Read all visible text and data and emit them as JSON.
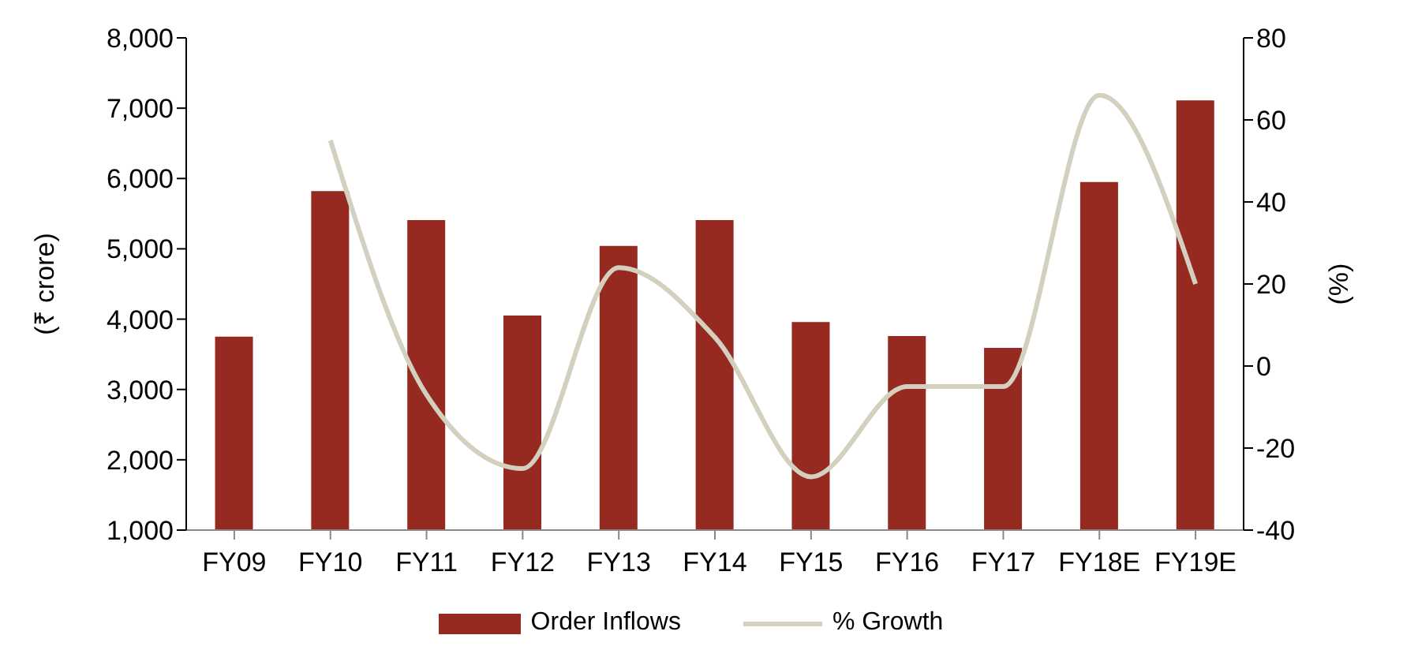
{
  "chart_data": {
    "type": "bar",
    "categories": [
      "FY09",
      "FY10",
      "FY11",
      "FY12",
      "FY13",
      "FY14",
      "FY15",
      "FY16",
      "FY17",
      "FY18E",
      "FY19E"
    ],
    "series": [
      {
        "name": "Order Inflows",
        "color": "#962920",
        "values": [
          3750,
          5820,
          5410,
          4050,
          5040,
          5410,
          3960,
          3760,
          3590,
          5950,
          7110
        ]
      },
      {
        "name": "% Growth",
        "type": "line",
        "axis": "y2",
        "color": "#d3d0c0",
        "values": [
          null,
          55,
          -7,
          -25,
          24,
          7,
          -27,
          -5,
          -5,
          66,
          20
        ]
      }
    ],
    "ylabel": "(₹ crore)",
    "y2label": "(%)",
    "ylim": [
      1000,
      8000
    ],
    "yticks": [
      {
        "value": 1000,
        "label": "1,000"
      },
      {
        "value": 2000,
        "label": "2,000"
      },
      {
        "value": 3000,
        "label": "3,000"
      },
      {
        "value": 4000,
        "label": "4,000"
      },
      {
        "value": 5000,
        "label": "5,000"
      },
      {
        "value": 6000,
        "label": "6,000"
      },
      {
        "value": 7000,
        "label": "7,000"
      },
      {
        "value": 8000,
        "label": "8,000"
      }
    ],
    "y2lim": [
      -40,
      80
    ],
    "y2ticks": [
      -40,
      -20,
      0,
      20,
      40,
      60,
      80
    ],
    "legend": "bottom",
    "marker": "none"
  }
}
